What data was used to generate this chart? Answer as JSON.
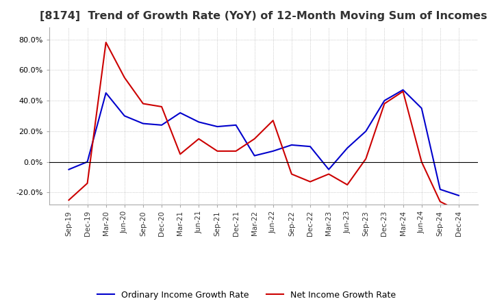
{
  "title": "[8174]  Trend of Growth Rate (YoY) of 12-Month Moving Sum of Incomes",
  "title_fontsize": 11.5,
  "ylim": [
    -28,
    88
  ],
  "yticks": [
    -20.0,
    0.0,
    20.0,
    40.0,
    60.0,
    80.0
  ],
  "background_color": "#ffffff",
  "grid_color": "#aaaaaa",
  "ordinary_color": "#0000cc",
  "net_color": "#cc0000",
  "legend_labels": [
    "Ordinary Income Growth Rate",
    "Net Income Growth Rate"
  ],
  "x_labels": [
    "Sep-19",
    "Dec-19",
    "Mar-20",
    "Jun-20",
    "Sep-20",
    "Dec-20",
    "Mar-21",
    "Jun-21",
    "Sep-21",
    "Dec-21",
    "Mar-22",
    "Jun-22",
    "Sep-22",
    "Dec-22",
    "Mar-23",
    "Jun-23",
    "Sep-23",
    "Dec-23",
    "Mar-24",
    "Jun-24",
    "Sep-24",
    "Dec-24"
  ],
  "ordinary": [
    -5,
    0,
    45,
    30,
    25,
    24,
    32,
    26,
    23,
    24,
    4,
    7,
    11,
    10,
    -5,
    9,
    20,
    40,
    47,
    35,
    -18,
    -22
  ],
  "net": [
    -25,
    -14,
    78,
    55,
    38,
    36,
    5,
    15,
    7,
    7,
    15,
    27,
    -8,
    -13,
    -8,
    -15,
    2,
    38,
    46,
    0,
    -26,
    -32
  ]
}
